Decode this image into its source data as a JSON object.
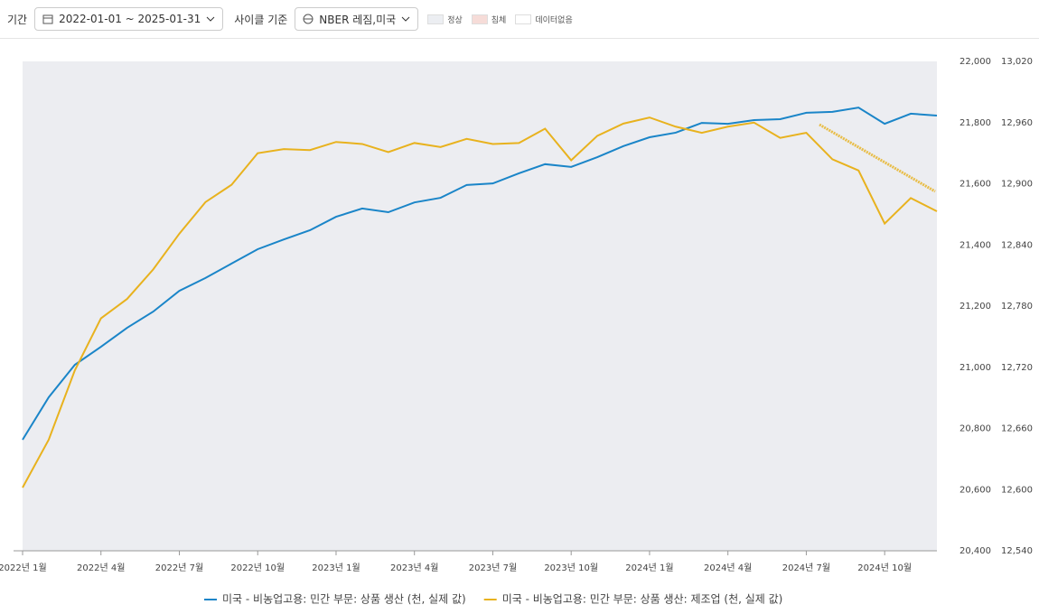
{
  "toolbar": {
    "period_label": "기간",
    "period": "2022-01-01 ~ 2025-01-31",
    "cycle_label": "사이클 기준",
    "cycle": "NBER 레짐,미국",
    "legend": [
      "정상",
      "침체",
      "데이터없음"
    ]
  },
  "chart_data": {
    "type": "line",
    "categories": [
      "2022년 1월",
      null,
      null,
      "2022년 4월",
      null,
      null,
      "2022년 7월",
      null,
      null,
      "2022년 10월",
      null,
      null,
      "2023년 1월",
      null,
      null,
      "2023년 4월",
      null,
      null,
      "2023년 7월",
      null,
      null,
      "2023년 10월",
      null,
      null,
      "2024년 1월",
      null,
      null,
      "2024년 4월",
      null,
      null,
      "2024년 7월",
      null,
      null,
      "2024년 10월",
      null,
      null
    ],
    "series": [
      {
        "name": "미국 - 비농업고용: 민간 부문: 상품 생산 (천, 실제 값)",
        "color": "#1a85c8",
        "axis": "y",
        "values": [
          20763,
          20902,
          21008,
          21067,
          21129,
          21182,
          21250,
          21292,
          21339,
          21386,
          21418,
          21448,
          21492,
          21519,
          21507,
          21539,
          21554,
          21596,
          21601,
          21634,
          21664,
          21655,
          21687,
          21723,
          21752,
          21767,
          21799,
          21796,
          21808,
          21811,
          21832,
          21835,
          21849,
          21796,
          21829,
          21823
        ]
      },
      {
        "name": "미국 - 비농업고용: 민간 부문: 상품 생산: 제조업 (천, 실제 값)",
        "color": "#e8b21e",
        "axis": "y2",
        "values": [
          12602,
          12649,
          12717,
          12768,
          12787,
          12816,
          12851,
          12882,
          12899,
          12930,
          12934,
          12933,
          12941,
          12939,
          12931,
          12940,
          12936,
          12944,
          12939,
          12940,
          12954,
          12923,
          12947,
          12959,
          12965,
          12956,
          12950,
          12956,
          12960,
          12945,
          12950,
          12924,
          12913,
          12861,
          12886,
          12873
        ]
      }
    ],
    "ylim": [
      20400,
      22000
    ],
    "yticks": [
      {
        "value": 20400,
        "label": "20,400"
      },
      {
        "value": 20600,
        "label": "20,600"
      },
      {
        "value": 20800,
        "label": "20,800"
      },
      {
        "value": 21000,
        "label": "21,000"
      },
      {
        "value": 21200,
        "label": "21,200"
      },
      {
        "value": 21400,
        "label": "21,400"
      },
      {
        "value": 21600,
        "label": "21,600"
      },
      {
        "value": 21800,
        "label": "21,800"
      },
      {
        "value": 22000,
        "label": "22,000"
      }
    ],
    "y2lim": [
      12540,
      13020
    ],
    "y2ticks": [
      {
        "value": 12540,
        "label": "12,540"
      },
      {
        "value": 12600,
        "label": "12,600"
      },
      {
        "value": 12660,
        "label": "12,660"
      },
      {
        "value": 12720,
        "label": "12,720"
      },
      {
        "value": 12780,
        "label": "12,780"
      },
      {
        "value": 12840,
        "label": "12,840"
      },
      {
        "value": 12900,
        "label": "12,900"
      },
      {
        "value": 12960,
        "label": "12,960"
      },
      {
        "value": 13020,
        "label": "13,020"
      }
    ]
  }
}
